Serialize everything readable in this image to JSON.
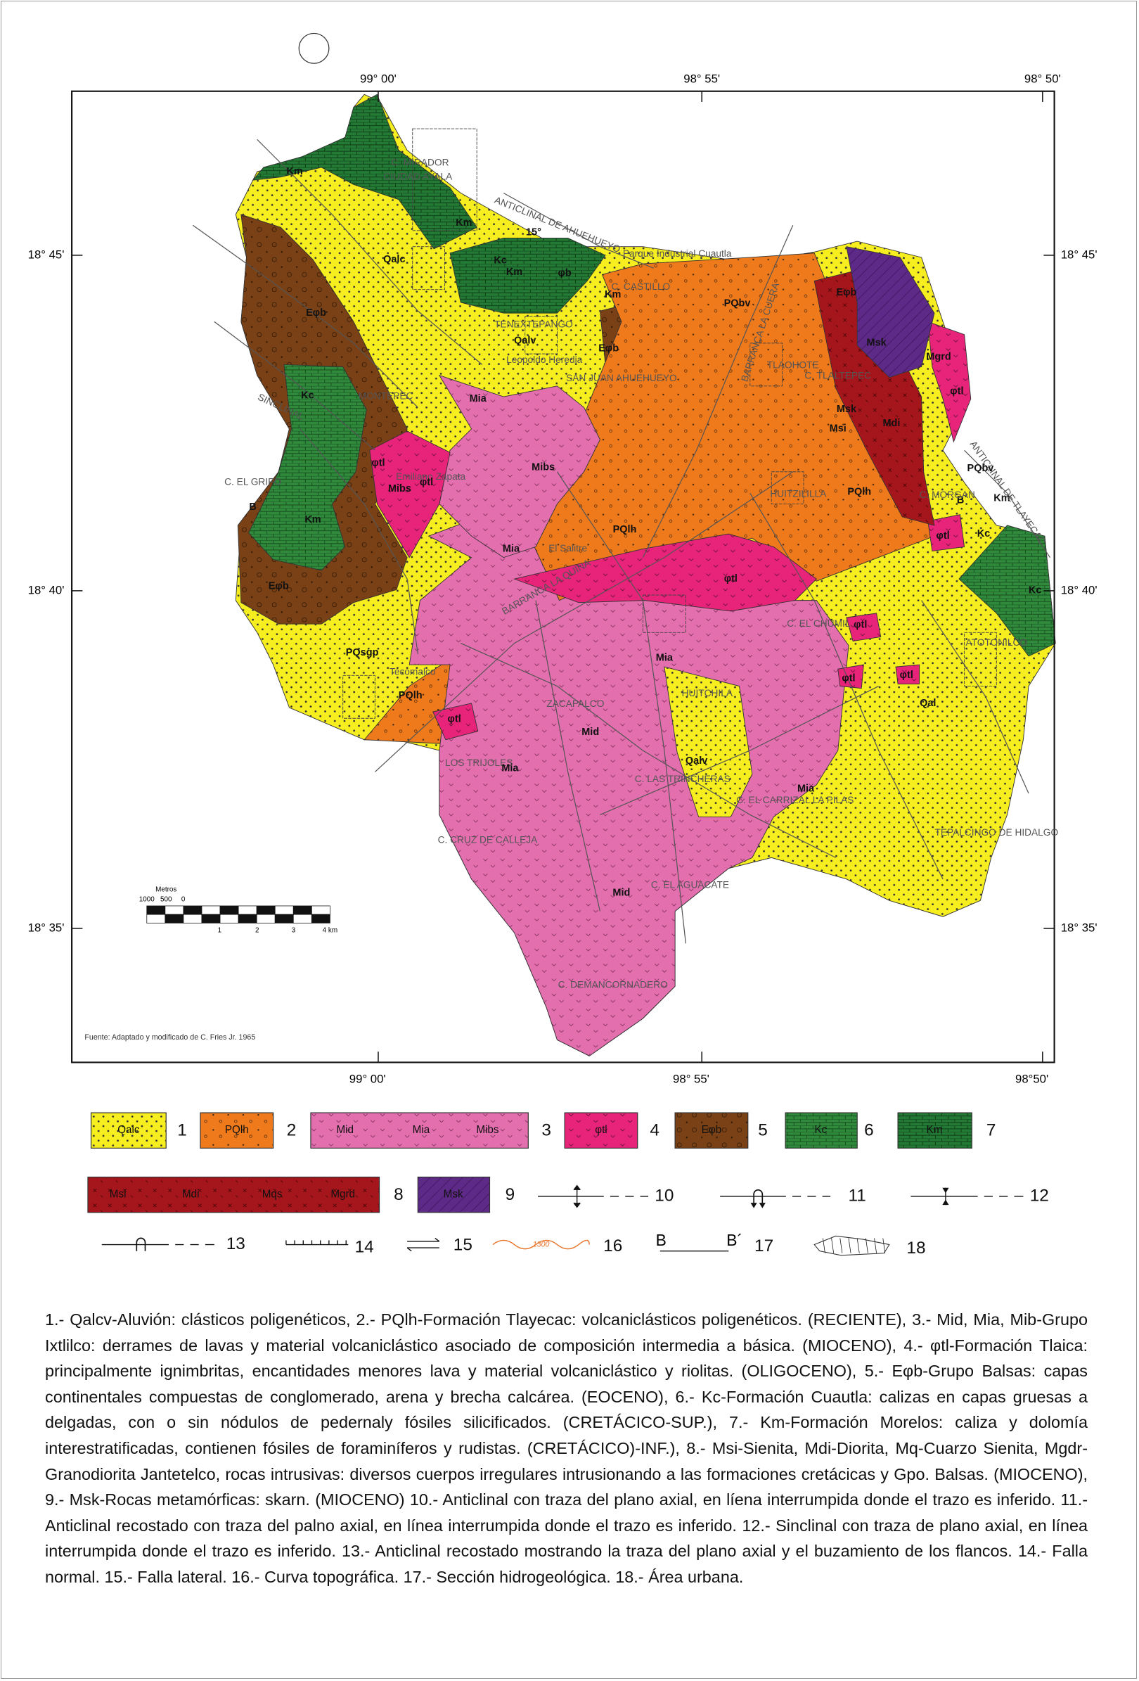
{
  "coordinates": {
    "top": [
      "99° 00'",
      "98° 55'",
      "98° 50'"
    ],
    "bottom": [
      "99° 00'",
      "98° 55'",
      "98°50'"
    ],
    "left": [
      "18° 45'",
      "18° 40'",
      "18° 35'"
    ],
    "right": [
      "18° 45'",
      "18° 40'",
      "18° 35'"
    ]
  },
  "map_labels": [
    "C. MIRADOR",
    "CIUDAD AYALA",
    "ANTICLINAL DE AHUEHUEYO",
    "Parque Industrial Cuautla",
    "Km",
    "Qalc",
    "Eφb",
    "Kc",
    "Km",
    "Kc",
    "Km",
    "φb",
    "Km",
    "C. CASTILLO",
    "PQbv",
    "TENEXTEPANGO",
    "Qalv",
    "Eφb",
    "Leopoldo Heredia",
    "SAN JUAN AHUEHUEYO",
    "TLAOHOTE",
    "MONTEPEC",
    "Mia",
    "Eφb",
    "Msk",
    "Mgrd",
    "C. TLALTEPEC",
    "φtl",
    "Msk",
    "Msi",
    "Mdi",
    "Mibs",
    "φtl",
    "Emiliano Zapata",
    "φtl",
    "Mibs",
    "C. EL GRIFO",
    "B",
    "HUITZILILLA",
    "PQlh",
    "PQbv",
    "B´",
    "Km",
    "C. MORGAN",
    "Km",
    "PQlh",
    "Mia",
    "El Salitre",
    "φtl",
    "Kc",
    "Kc",
    "φtl",
    "Eφb",
    "BARRANCA LA QUINA",
    "C. EL CHUMIL",
    "φtl",
    "ATOTONILCO",
    "Mia",
    "PQsgp",
    "Tecomalco",
    "PQlh",
    "φtl",
    "φtl",
    "ZACAPALCO",
    "HUITCHILA",
    "Qal",
    "Mid",
    "φtl",
    "LOS TRIJOLES",
    "Mia",
    "C. LAS TRINCHERAS",
    "Qalv",
    "Mia",
    "C. EL CARRIZAL LA PILAS",
    "TEPALCINGO DE HIDALGO",
    "C. CRUZ DE CALLEJA",
    "C. EL AGUACATE",
    "Mid",
    "C. DEMANCORNADERO",
    "BARRANCA LA CUERA",
    "ANTICLINAL DE TLAYECAC",
    "SINCLINAL",
    "15°"
  ],
  "scale_bar": {
    "title": "Metros",
    "labels": [
      "1000",
      "500",
      "0",
      "1",
      "2",
      "3",
      "4 km"
    ]
  },
  "source": "Fuente: Adaptado y modificado de C. Fries Jr. 1965",
  "legend": [
    {
      "number": "1",
      "units": [
        "Qalc"
      ]
    },
    {
      "number": "2",
      "units": [
        "PQlh"
      ]
    },
    {
      "number": "3",
      "units": [
        "Mid",
        "Mia",
        "Mibs"
      ]
    },
    {
      "number": "4",
      "units": [
        "φtl"
      ]
    },
    {
      "number": "5",
      "units": [
        "Eφb"
      ]
    },
    {
      "number": "6",
      "units": [
        "Kc"
      ]
    },
    {
      "number": "7",
      "units": [
        "Km"
      ]
    },
    {
      "number": "8",
      "units": [
        "Msi",
        "Mdi",
        "Mqs",
        "Mgrd"
      ]
    },
    {
      "number": "9",
      "units": [
        "Msk"
      ]
    },
    {
      "number": "10"
    },
    {
      "number": "11"
    },
    {
      "number": "12"
    },
    {
      "number": "13"
    },
    {
      "number": "14"
    },
    {
      "number": "15"
    },
    {
      "number": "16",
      "labels": [
        "1300"
      ]
    },
    {
      "number": "17",
      "labels": [
        "B",
        "B´"
      ]
    },
    {
      "number": "18"
    }
  ],
  "description": "1.- Qalcv-Aluvión: clásticos poligenéticos, 2.- PQlh-Formación Tlayecac: volcaniclásticos poligenéticos. (RECIENTE), 3.- Mid, Mia, Mib-Grupo Ixtlilco: derrames de lavas y material volcaniclástico asociado de composición intermedia a básica. (MIOCENO), 4.- φtl-Formación Tlaica: principalmente ignimbritas, encantidades menores lava y material volcaniclástico y riolitas. (OLIGOCENO), 5.- Eφb-Grupo Balsas: capas continentales compuestas de conglomerado, arena y brecha calcárea. (EOCENO), 6.- Kc-Formación Cuautla: calizas en capas gruesas a delgadas, con o sin nódulos de pedernaly fósiles silicificados. (CRETÁCICO-SUP.), 7.- Km-Formación Morelos: caliza y dolomía interestratificadas, contienen fósiles de foraminíferos y rudistas. (CRETÁCICO)-INF.), 8.- Msi-Sienita, Mdi-Diorita, Mq-Cuarzo Sienita, Mgdr-Granodiorita Jantetelco, rocas intrusivas: diversos cuerpos irregulares intrusionando a las formaciones cretácicas y Gpo. Balsas. (MIOCENO), 9.- Msk-Rocas metamórficas: skarn. (MIOCENO) 10.- Anticlinal con traza del plano axial, en líena interrumpida donde el trazo es inferido. 11.- Anticlinal recostado con traza del palno axial, en línea interrumpida donde el trazo es inferido. 12.- Sinclinal con traza de plano axial, en línea interrumpida donde el trazo es inferido. 13.- Anticlinal recostado mostrando la traza del plano axial y el buzamiento de los flancos. 14.- Falla normal. 15.- Falla lateral. 16.- Curva topográfica. 17.- Sección hidrogeológica. 18.- Área urbana."
}
